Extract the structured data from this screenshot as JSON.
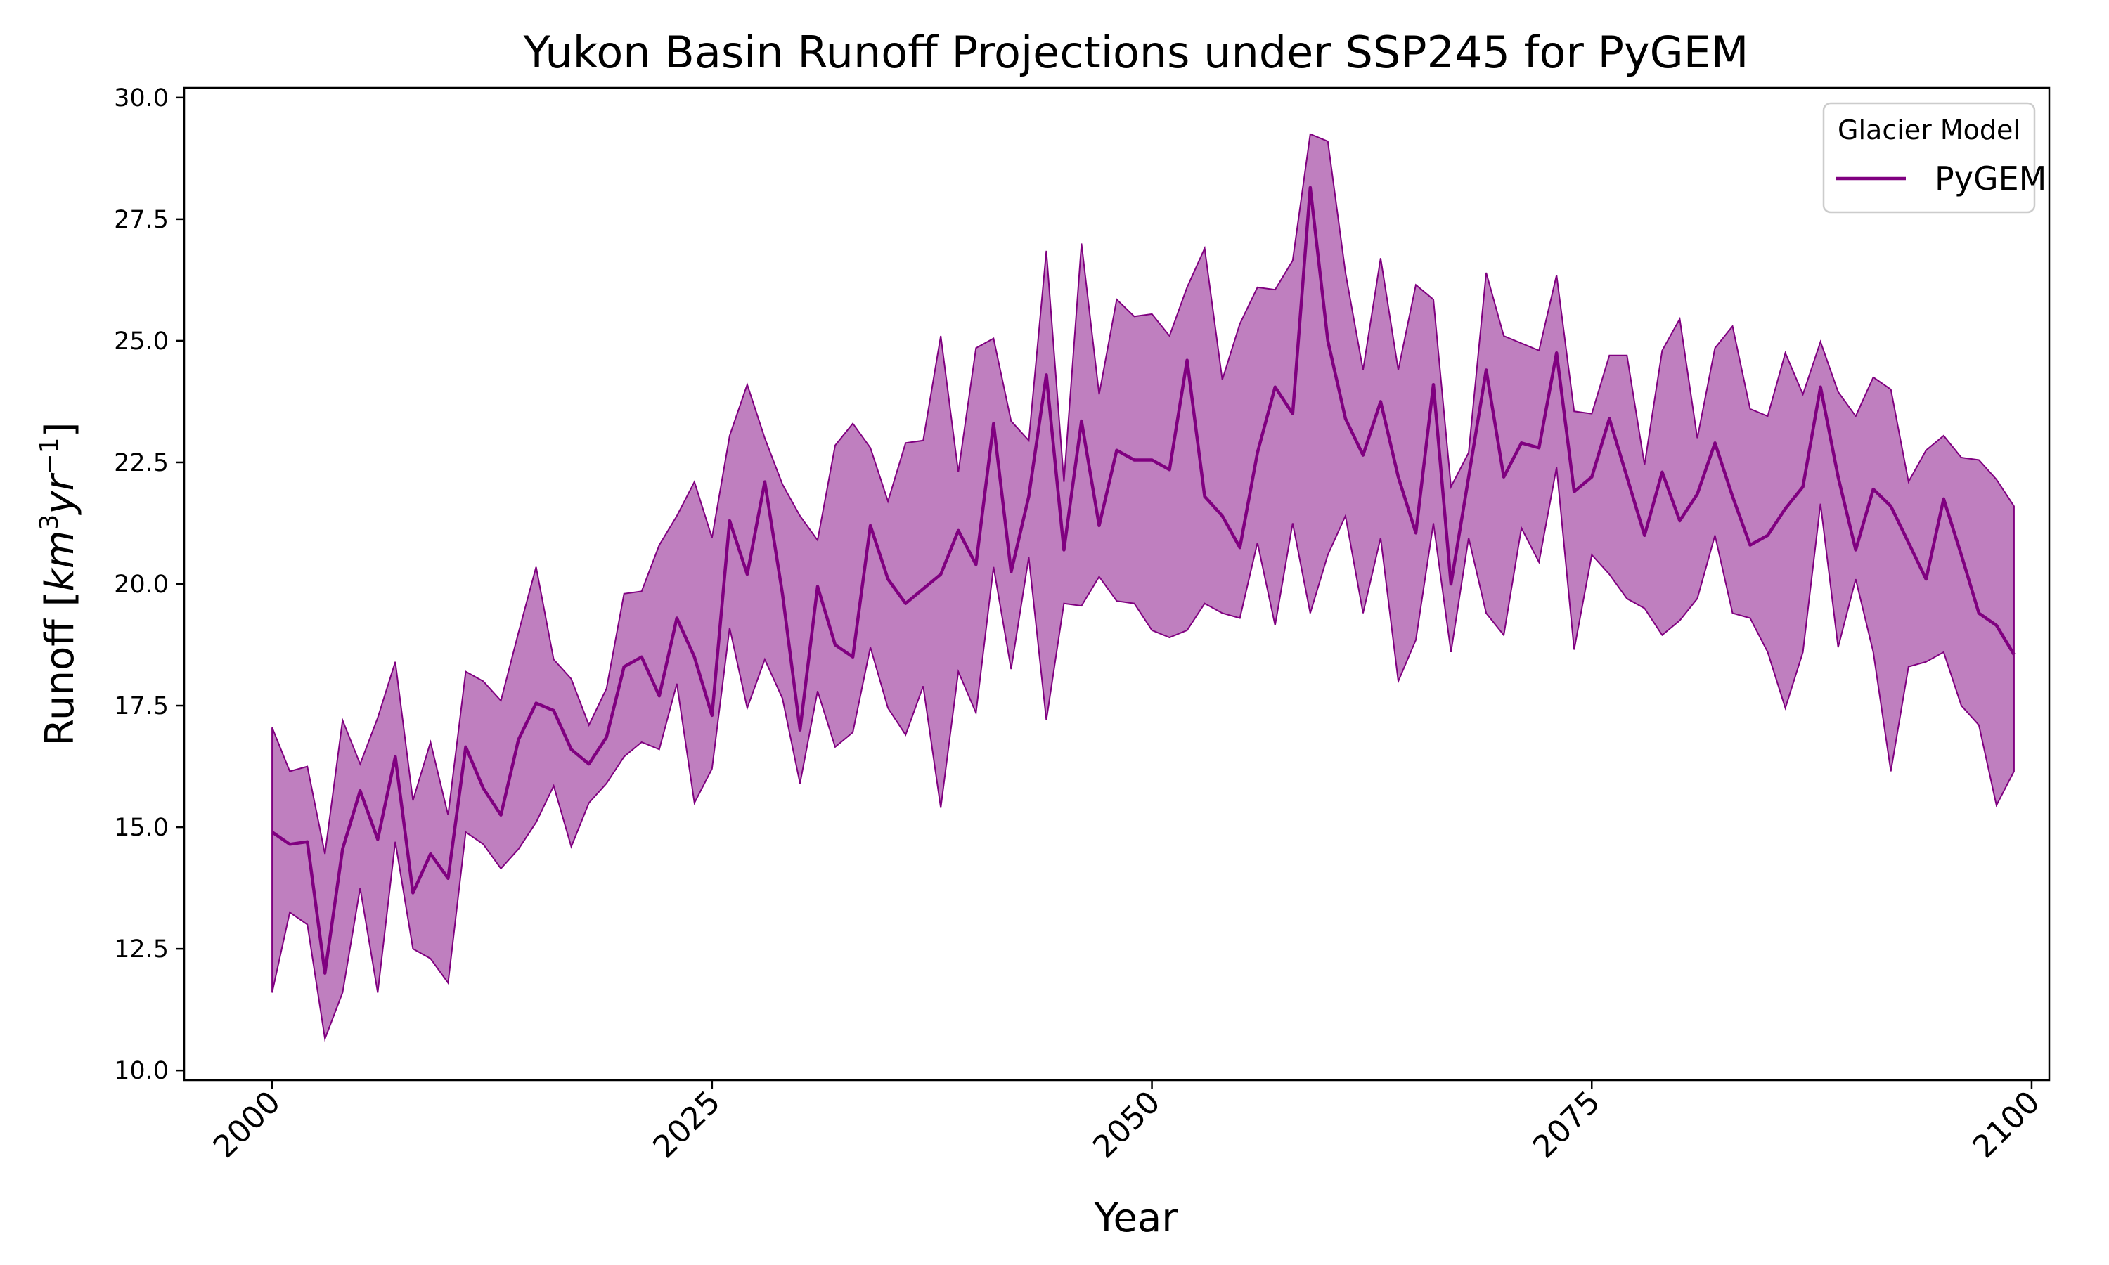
{
  "chart_data": {
    "type": "line",
    "title": "Yukon Basin Runoff Projections under SSP245 for PyGEM",
    "xlabel": "Year",
    "ylabel": "Runoff [km³yr⁻¹]",
    "xlim": [
      1995,
      2101
    ],
    "ylim": [
      9.8,
      30.2
    ],
    "xticks": [
      2000,
      2025,
      2050,
      2075,
      2100
    ],
    "yticks": [
      10.0,
      12.5,
      15.0,
      17.5,
      20.0,
      22.5,
      25.0,
      27.5,
      30.0
    ],
    "legend": {
      "title": "Glacier Model",
      "position": "top-right"
    },
    "grid": false,
    "x": [
      2000,
      2001,
      2002,
      2003,
      2004,
      2005,
      2006,
      2007,
      2008,
      2009,
      2010,
      2011,
      2012,
      2013,
      2014,
      2015,
      2016,
      2017,
      2018,
      2019,
      2020,
      2021,
      2022,
      2023,
      2024,
      2025,
      2026,
      2027,
      2028,
      2029,
      2030,
      2031,
      2032,
      2033,
      2034,
      2035,
      2036,
      2037,
      2038,
      2039,
      2040,
      2041,
      2042,
      2043,
      2044,
      2045,
      2046,
      2047,
      2048,
      2049,
      2050,
      2051,
      2052,
      2053,
      2054,
      2055,
      2056,
      2057,
      2058,
      2059,
      2060,
      2061,
      2062,
      2063,
      2064,
      2065,
      2066,
      2067,
      2068,
      2069,
      2070,
      2071,
      2072,
      2073,
      2074,
      2075,
      2076,
      2077,
      2078,
      2079,
      2080,
      2081,
      2082,
      2083,
      2084,
      2085,
      2086,
      2087,
      2088,
      2089,
      2090,
      2091,
      2092,
      2093,
      2094,
      2095,
      2096,
      2097,
      2098,
      2099
    ],
    "series": [
      {
        "name": "PyGEM",
        "color": "#800080",
        "band_color": "#800080",
        "values": [
          14.9,
          14.65,
          14.7,
          12.0,
          14.55,
          15.75,
          14.75,
          16.45,
          13.65,
          14.45,
          13.95,
          16.65,
          15.8,
          15.25,
          16.8,
          17.55,
          17.4,
          16.6,
          16.3,
          16.85,
          18.3,
          18.5,
          17.7,
          19.3,
          18.5,
          17.3,
          21.3,
          20.2,
          22.1,
          19.8,
          17.0,
          19.95,
          18.75,
          18.5,
          21.2,
          20.1,
          19.6,
          19.9,
          20.2,
          21.1,
          20.4,
          23.3,
          20.25,
          21.8,
          24.3,
          20.7,
          23.35,
          21.2,
          22.75,
          22.55,
          22.55,
          22.35,
          24.6,
          21.8,
          21.4,
          20.75,
          22.7,
          24.05,
          23.5,
          28.15,
          25.0,
          23.4,
          22.65,
          23.75,
          22.2,
          21.05,
          24.1,
          20.0,
          22.2,
          24.4,
          22.2,
          22.9,
          22.8,
          24.75,
          21.9,
          22.2,
          23.4,
          22.2,
          21.0,
          22.3,
          21.3,
          21.85,
          22.9,
          21.8,
          20.8,
          21.0,
          21.55,
          22.0,
          24.05,
          22.2,
          20.7,
          21.95,
          21.6,
          20.85,
          20.1,
          21.75,
          20.6,
          19.4,
          19.15,
          18.55
        ],
        "upper": [
          17.05,
          16.15,
          16.25,
          14.45,
          17.2,
          16.3,
          17.25,
          18.4,
          15.55,
          16.75,
          15.25,
          18.2,
          18.0,
          17.6,
          19.0,
          20.35,
          18.45,
          18.05,
          17.1,
          17.85,
          19.8,
          19.85,
          20.8,
          21.4,
          22.1,
          20.95,
          23.05,
          24.1,
          23.0,
          22.05,
          21.4,
          20.9,
          22.85,
          23.3,
          22.8,
          21.7,
          22.9,
          22.95,
          25.1,
          22.3,
          24.85,
          25.05,
          23.35,
          22.95,
          26.85,
          22.1,
          27.0,
          23.9,
          25.85,
          25.5,
          25.55,
          25.1,
          26.1,
          26.9,
          24.2,
          25.35,
          26.1,
          26.05,
          26.65,
          29.25,
          29.1,
          26.4,
          24.4,
          26.7,
          24.4,
          26.15,
          25.85,
          22.0,
          22.7,
          26.4,
          25.1,
          24.95,
          24.8,
          26.35,
          23.55,
          23.5,
          24.7,
          24.7,
          22.45,
          24.8,
          25.45,
          23.0,
          24.85,
          25.3,
          23.6,
          23.45,
          24.75,
          23.9,
          24.98,
          23.95,
          23.45,
          24.25,
          24.0,
          22.1,
          22.75,
          23.05,
          22.6,
          22.55,
          22.15,
          21.6
        ],
        "lower": [
          11.6,
          13.25,
          13.0,
          10.65,
          11.6,
          13.75,
          11.6,
          14.7,
          12.5,
          12.3,
          11.8,
          14.9,
          14.65,
          14.15,
          14.55,
          15.1,
          15.85,
          14.6,
          15.5,
          15.9,
          16.45,
          16.75,
          16.6,
          17.95,
          15.5,
          16.2,
          19.1,
          17.45,
          18.45,
          17.65,
          15.9,
          17.8,
          16.65,
          16.95,
          18.7,
          17.45,
          16.9,
          17.9,
          15.4,
          18.2,
          17.35,
          20.35,
          18.25,
          20.55,
          17.2,
          19.6,
          19.55,
          20.15,
          19.65,
          19.6,
          19.05,
          18.9,
          19.05,
          19.6,
          19.4,
          19.3,
          20.85,
          19.15,
          21.25,
          19.4,
          20.6,
          21.4,
          19.4,
          20.95,
          18.0,
          18.85,
          21.25,
          18.6,
          20.95,
          19.4,
          18.95,
          21.15,
          20.45,
          22.4,
          18.65,
          20.6,
          20.2,
          19.7,
          19.5,
          18.95,
          19.25,
          19.7,
          21.0,
          19.4,
          19.3,
          18.6,
          17.45,
          18.6,
          21.65,
          18.7,
          20.1,
          18.6,
          16.15,
          18.3,
          18.4,
          18.6,
          17.5,
          17.1,
          15.45,
          16.15
        ]
      }
    ]
  }
}
